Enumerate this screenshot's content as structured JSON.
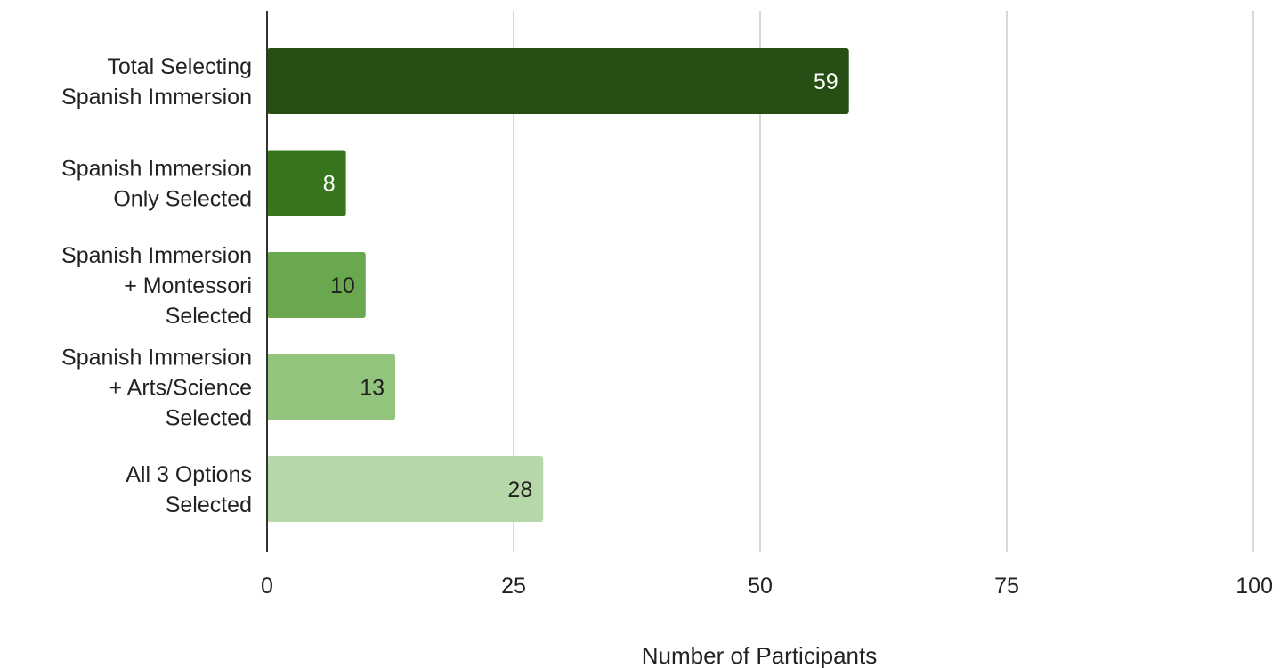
{
  "chart_data": {
    "type": "bar",
    "orientation": "horizontal",
    "title": "",
    "xlabel": "Number of Participants",
    "ylabel": "",
    "xlim": [
      0,
      100
    ],
    "x_ticks": [
      0,
      25,
      50,
      75,
      100
    ],
    "grid": "vertical",
    "legend": "none",
    "categories": [
      [
        "Total Selecting",
        "Spanish Immersion"
      ],
      [
        "Spanish Immersion",
        "Only Selected"
      ],
      [
        "Spanish Immersion",
        "+ Montessori",
        "Selected"
      ],
      [
        "Spanish Immersion",
        "+ Arts/Science",
        "Selected"
      ],
      [
        "All 3 Options",
        "Selected"
      ]
    ],
    "values": [
      59,
      8,
      10,
      13,
      28
    ],
    "bar_colors": [
      "#274e13",
      "#38761d",
      "#6aa84f",
      "#93c47d",
      "#b6d7a8"
    ],
    "label_colors": [
      "#ffffff",
      "#ffffff",
      "#1f1f1f",
      "#1f1f1f",
      "#1f1f1f"
    ],
    "grid_color": "#cccccc",
    "axis_color": "#333333"
  }
}
